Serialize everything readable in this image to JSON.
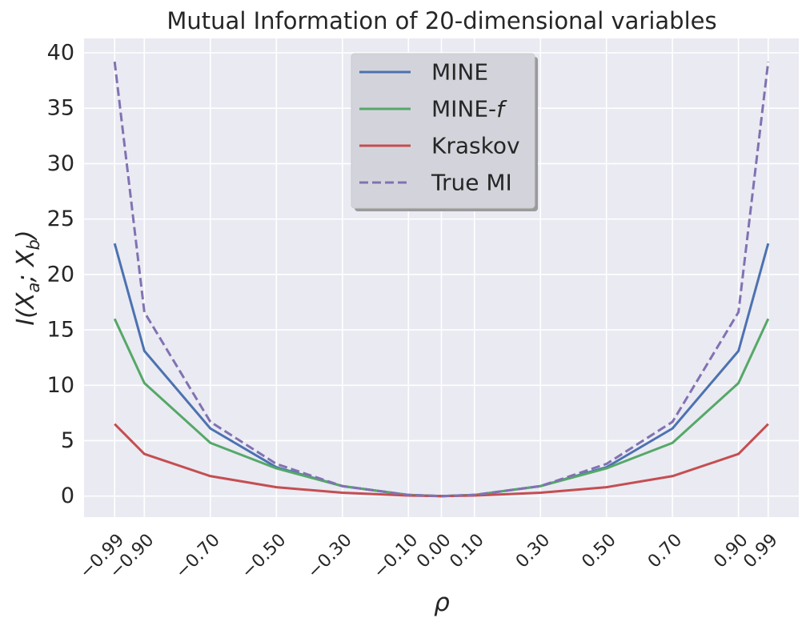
{
  "chart_data": {
    "type": "line",
    "title": "Mutual Information of 20-dimensional variables",
    "xlabel": "ρ",
    "ylabel": {
      "base": "I(X",
      "sub_a": "a",
      "sep": "; X",
      "sub_b": "b",
      "close": ")"
    },
    "x": [
      -0.99,
      -0.9,
      -0.7,
      -0.5,
      -0.3,
      -0.1,
      0.0,
      0.1,
      0.3,
      0.5,
      0.7,
      0.9,
      0.99
    ],
    "x_tick_labels": [
      "−0.99",
      "−0.90",
      "−0.70",
      "−0.50",
      "−0.30",
      "−0.10",
      "0.00",
      "0.10",
      "0.30",
      "0.50",
      "0.70",
      "0.90",
      "0.99"
    ],
    "y_ticks": [
      0,
      5,
      10,
      15,
      20,
      25,
      30,
      35,
      40
    ],
    "y_tick_labels": [
      "0",
      "5",
      "10",
      "15",
      "20",
      "25",
      "30",
      "35",
      "40"
    ],
    "xlim": [
      -1.0827,
      1.0827
    ],
    "ylim": [
      -1.9,
      41.3
    ],
    "grid": true,
    "legend_position": "top-center",
    "series": [
      {
        "name": "MINE",
        "legend_label": "MINE",
        "color": "#4c72b0",
        "dashed": false,
        "values": [
          22.8,
          13.1,
          6.1,
          2.6,
          0.9,
          0.1,
          0.0,
          0.1,
          0.9,
          2.6,
          6.1,
          13.1,
          22.8
        ]
      },
      {
        "name": "MINE-f",
        "legend_label": "MINE-",
        "legend_italic_suffix": "f",
        "color": "#55a868",
        "dashed": false,
        "values": [
          16.0,
          10.2,
          4.8,
          2.5,
          0.9,
          0.1,
          0.0,
          0.1,
          0.9,
          2.5,
          4.8,
          10.2,
          16.0
        ]
      },
      {
        "name": "Kraskov",
        "legend_label": "Kraskov",
        "color": "#c44e52",
        "dashed": false,
        "values": [
          6.5,
          3.8,
          1.8,
          0.8,
          0.3,
          0.05,
          0.0,
          0.05,
          0.3,
          0.8,
          1.8,
          3.8,
          6.5
        ]
      },
      {
        "name": "True MI",
        "legend_label": "True MI",
        "color": "#8172b2",
        "dashed": true,
        "values": [
          39.2,
          16.6,
          6.7,
          2.9,
          0.9,
          0.1,
          0.0,
          0.1,
          0.9,
          2.9,
          6.7,
          16.6,
          39.2
        ]
      }
    ],
    "colors": {
      "background": "#eaeaf2",
      "grid": "#ffffff",
      "text": "#262626"
    }
  }
}
